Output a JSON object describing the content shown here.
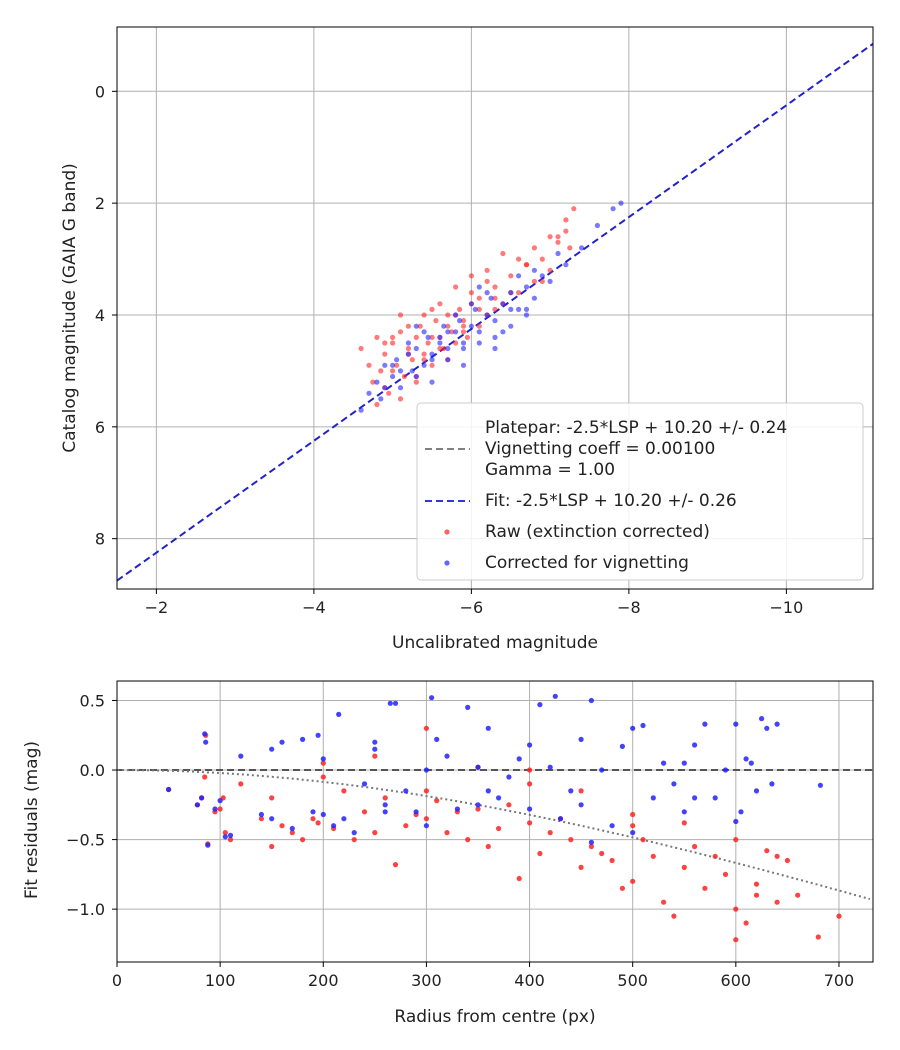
{
  "chart_data": [
    {
      "type": "scatter",
      "xlabel": "Uncalibrated magnitude",
      "ylabel": "Catalog magnitude (GAIA G band)",
      "xlim": [
        -1.5,
        -11.1
      ],
      "ylim": [
        8.9,
        -1.15
      ],
      "x_inverted": true,
      "y_inverted": true,
      "xticks": [
        -2,
        -4,
        -6,
        -8,
        -10
      ],
      "xtick_labels": [
        "−2",
        "−4",
        "−6",
        "−8",
        "−10"
      ],
      "yticks": [
        0,
        2,
        4,
        6,
        8
      ],
      "ytick_labels": [
        "0",
        "2",
        "4",
        "6",
        "8"
      ],
      "grid": true,
      "legend_position": "lower-right",
      "lines": [
        {
          "name": "platepar",
          "style": "dashed",
          "color": "#808080",
          "x": [
            -1.5,
            -11.1
          ],
          "y": [
            8.7,
            -0.9
          ],
          "visible": false
        },
        {
          "name": "fit",
          "style": "dashed",
          "color": "#2222cc",
          "x": [
            -1.5,
            -11.1
          ],
          "y": [
            8.75,
            -0.85
          ]
        }
      ],
      "legend": [
        {
          "kind": "line",
          "style": "dashed",
          "color": "#808080",
          "lines": [
            "Platepar: -2.5*LSP + 10.20 +/- 0.24",
            "Vignetting coeff = 0.00100",
            "Gamma = 1.00"
          ]
        },
        {
          "kind": "line",
          "style": "dashed",
          "color": "#3333ee",
          "lines": [
            "Fit: -2.5*LSP + 10.20 +/- 0.26"
          ]
        },
        {
          "kind": "marker",
          "color": "#ff2222",
          "lines": [
            "Raw (extinction corrected)"
          ]
        },
        {
          "kind": "marker",
          "color": "#2222ff",
          "lines": [
            "Corrected for vignetting"
          ]
        }
      ],
      "series": [
        {
          "name": "Raw (extinction corrected)",
          "color": "#ff2222",
          "x": [
            -4.6,
            -4.7,
            -4.75,
            -4.8,
            -4.85,
            -4.9,
            -4.95,
            -5.0,
            -5.05,
            -5.1,
            -5.15,
            -5.2,
            -5.25,
            -5.3,
            -5.35,
            -5.4,
            -5.45,
            -5.5,
            -5.55,
            -5.6,
            -5.65,
            -5.7,
            -5.75,
            -5.8,
            -5.85,
            -5.9,
            -5.95,
            -6.0,
            -6.1,
            -6.2,
            -6.3,
            -6.4,
            -6.5,
            -6.6,
            -6.7,
            -6.8,
            -6.9,
            -7.0,
            -7.1,
            -7.2,
            -7.3,
            -4.8,
            -4.9,
            -5.0,
            -5.1,
            -5.2,
            -5.3,
            -5.4,
            -5.5,
            -5.6,
            -5.7,
            -5.8,
            -5.9,
            -6.0,
            -6.1,
            -6.2,
            -6.3,
            -5.0,
            -5.2,
            -5.4,
            -5.6,
            -5.8,
            -6.0,
            -6.2,
            -6.4,
            -6.6,
            -6.8,
            -7.0,
            -7.2,
            -7.25,
            -6.9,
            -6.5,
            -6.1,
            -5.7,
            -5.3,
            -4.9,
            -5.1,
            -5.5,
            -5.9,
            -6.3,
            -6.7,
            -7.1
          ],
          "y": [
            4.6,
            4.9,
            5.2,
            4.4,
            5.0,
            4.7,
            5.4,
            4.5,
            4.9,
            4.3,
            5.1,
            4.6,
            4.8,
            4.4,
            4.2,
            4.7,
            4.5,
            4.9,
            4.1,
            4.4,
            4.6,
            4.0,
            4.3,
            4.5,
            3.9,
            4.2,
            4.4,
            3.8,
            3.7,
            4.0,
            3.5,
            3.8,
            3.3,
            3.6,
            3.1,
            3.4,
            3.0,
            3.2,
            2.7,
            2.5,
            2.1,
            5.6,
            5.3,
            5.0,
            5.5,
            4.7,
            5.1,
            4.8,
            4.4,
            4.6,
            4.2,
            4.0,
            4.3,
            3.6,
            3.9,
            3.4,
            3.7,
            4.4,
            4.2,
            4.0,
            3.8,
            3.5,
            3.3,
            3.2,
            2.9,
            3.0,
            2.8,
            2.6,
            2.3,
            2.8,
            3.4,
            3.6,
            4.2,
            4.8,
            5.2,
            4.5,
            4.0,
            3.9,
            4.1,
            3.9,
            3.1,
            2.6
          ]
        },
        {
          "name": "Corrected for vignetting",
          "color": "#2222ff",
          "x": [
            -4.6,
            -4.7,
            -4.8,
            -4.85,
            -4.9,
            -5.0,
            -5.05,
            -5.1,
            -5.2,
            -5.25,
            -5.3,
            -5.4,
            -5.45,
            -5.5,
            -5.6,
            -5.65,
            -5.7,
            -5.8,
            -5.85,
            -5.9,
            -6.0,
            -6.05,
            -6.1,
            -6.2,
            -6.25,
            -6.3,
            -6.4,
            -6.5,
            -6.6,
            -6.7,
            -6.8,
            -6.9,
            -7.0,
            -7.2,
            -7.4,
            -7.6,
            -7.8,
            -7.9,
            -4.9,
            -5.1,
            -5.3,
            -5.5,
            -5.7,
            -5.9,
            -6.1,
            -6.3,
            -6.5,
            -6.7,
            -5.0,
            -5.2,
            -5.4,
            -5.6,
            -5.8,
            -6.0,
            -6.2,
            -6.4,
            -6.6,
            -6.8,
            -5.5,
            -5.9,
            -6.3,
            -6.7,
            -7.1,
            -5.3,
            -5.7,
            -6.1,
            -6.5
          ],
          "y": [
            5.7,
            5.4,
            5.2,
            5.5,
            4.9,
            5.1,
            4.8,
            5.3,
            4.7,
            5.0,
            4.6,
            4.9,
            4.4,
            4.7,
            4.5,
            4.2,
            4.6,
            4.3,
            4.1,
            4.5,
            4.2,
            3.9,
            4.3,
            4.0,
            3.7,
            4.1,
            3.8,
            3.6,
            3.9,
            3.5,
            3.7,
            3.3,
            3.4,
            3.1,
            2.8,
            2.4,
            2.1,
            2.0,
            5.3,
            5.0,
            5.1,
            4.8,
            4.8,
            4.6,
            4.5,
            4.4,
            4.2,
            3.9,
            4.9,
            4.5,
            4.3,
            4.4,
            4.0,
            3.8,
            3.6,
            4.3,
            3.3,
            3.2,
            5.2,
            4.9,
            4.6,
            4.0,
            2.9,
            4.2,
            4.3,
            3.5,
            3.9
          ]
        }
      ]
    },
    {
      "type": "scatter",
      "xlabel": "Radius from centre (px)",
      "ylabel": "Fit residuals (mag)",
      "xlim": [
        0,
        733
      ],
      "ylim": [
        -1.38,
        0.64
      ],
      "xticks": [
        0,
        100,
        200,
        300,
        400,
        500,
        600,
        700
      ],
      "xtick_labels": [
        "0",
        "100",
        "200",
        "300",
        "400",
        "500",
        "600",
        "700"
      ],
      "yticks": [
        0.5,
        0.0,
        -0.5,
        -1.0
      ],
      "ytick_labels": [
        "0.5",
        "0.0",
        "−0.5",
        "−1.0"
      ],
      "grid": true,
      "lines": [
        {
          "name": "zero",
          "style": "dashed",
          "color": "#555555",
          "x": [
            0,
            733
          ],
          "y": [
            0,
            0
          ]
        },
        {
          "name": "vignetting_model",
          "style": "dotted",
          "color": "#777777",
          "model": "2.5*log10(cos(arctan(0.001*r))^4)"
        }
      ],
      "series": [
        {
          "name": "Raw (extinction corrected)",
          "color": "#ff2222",
          "x": [
            50,
            78,
            82,
            85,
            88,
            95,
            100,
            103,
            105,
            110,
            120,
            140,
            150,
            160,
            170,
            180,
            190,
            195,
            200,
            210,
            220,
            230,
            240,
            250,
            260,
            270,
            280,
            290,
            300,
            310,
            320,
            330,
            340,
            350,
            360,
            370,
            380,
            390,
            400,
            410,
            420,
            430,
            440,
            450,
            460,
            470,
            480,
            490,
            500,
            510,
            520,
            530,
            540,
            550,
            560,
            570,
            580,
            590,
            600,
            610,
            620,
            630,
            640,
            650,
            660,
            680,
            700,
            86,
            150,
            200,
            250,
            300,
            350,
            400,
            450,
            500,
            550,
            600,
            620,
            640,
            300,
            400,
            500,
            600
          ],
          "y": [
            -0.14,
            -0.25,
            -0.2,
            -0.05,
            -0.53,
            -0.3,
            -0.28,
            -0.2,
            -0.45,
            -0.5,
            -0.1,
            -0.35,
            -0.55,
            -0.4,
            -0.45,
            -0.5,
            -0.35,
            -0.38,
            -0.05,
            -0.42,
            -0.15,
            -0.5,
            -0.3,
            -0.45,
            -0.2,
            -0.68,
            -0.4,
            -0.32,
            -0.35,
            -0.22,
            -0.45,
            -0.3,
            -0.5,
            -0.28,
            -0.55,
            -0.42,
            -0.25,
            -0.78,
            -0.38,
            -0.6,
            -0.45,
            -0.35,
            -0.5,
            -0.7,
            -0.55,
            -0.6,
            -0.65,
            -0.85,
            -0.8,
            -0.5,
            -0.62,
            -0.95,
            -1.05,
            -0.7,
            -0.55,
            -0.85,
            -0.62,
            -0.75,
            -1.22,
            -1.1,
            -0.82,
            -0.58,
            -0.95,
            -0.65,
            -0.9,
            -1.2,
            -1.05,
            0.25,
            -0.2,
            0.05,
            0.1,
            0.3,
            0.02,
            -0.1,
            -0.15,
            -0.4,
            -0.38,
            -1.0,
            -0.9,
            -0.62,
            -0.15,
            0.0,
            -0.32,
            -0.5
          ],
          "y_note": "approximate"
        },
        {
          "name": "Corrected for vignetting",
          "color": "#2222ff",
          "x": [
            50,
            78,
            82,
            85,
            88,
            95,
            100,
            105,
            110,
            120,
            140,
            150,
            160,
            170,
            180,
            190,
            195,
            200,
            210,
            215,
            220,
            230,
            240,
            250,
            260,
            265,
            270,
            280,
            290,
            300,
            305,
            310,
            320,
            330,
            340,
            350,
            360,
            370,
            380,
            390,
            400,
            410,
            420,
            425,
            430,
            440,
            450,
            460,
            470,
            480,
            490,
            500,
            510,
            520,
            530,
            540,
            550,
            560,
            570,
            580,
            590,
            600,
            605,
            610,
            615,
            620,
            625,
            630,
            635,
            640,
            682,
            86,
            150,
            200,
            250,
            300,
            350,
            400,
            450,
            500,
            550,
            600,
            260,
            360,
            460,
            560
          ],
          "y": [
            -0.14,
            -0.25,
            -0.2,
            0.26,
            -0.54,
            -0.28,
            -0.22,
            -0.48,
            -0.47,
            0.1,
            -0.32,
            -0.35,
            0.2,
            -0.42,
            0.22,
            -0.3,
            0.25,
            -0.32,
            -0.4,
            0.4,
            -0.35,
            -0.45,
            -0.1,
            0.2,
            -0.25,
            0.48,
            0.48,
            -0.15,
            -0.3,
            0.0,
            0.52,
            0.22,
            0.1,
            -0.28,
            0.45,
            -0.25,
            0.3,
            -0.2,
            -0.05,
            0.08,
            -0.28,
            0.47,
            0.02,
            0.53,
            -0.35,
            -0.15,
            -0.25,
            0.5,
            0.0,
            -0.4,
            0.17,
            0.3,
            0.32,
            -0.2,
            0.05,
            -0.1,
            0.05,
            -0.2,
            0.33,
            -0.2,
            0.0,
            0.33,
            -0.3,
            0.08,
            0.05,
            -0.15,
            0.37,
            0.3,
            -0.1,
            0.33,
            -0.11,
            0.2,
            0.15,
            0.08,
            0.15,
            -0.4,
            0.02,
            0.18,
            0.22,
            -0.45,
            -0.3,
            -0.37,
            -0.3,
            -0.15,
            -0.52,
            0.18
          ],
          "y_note": "approximate"
        }
      ]
    }
  ]
}
